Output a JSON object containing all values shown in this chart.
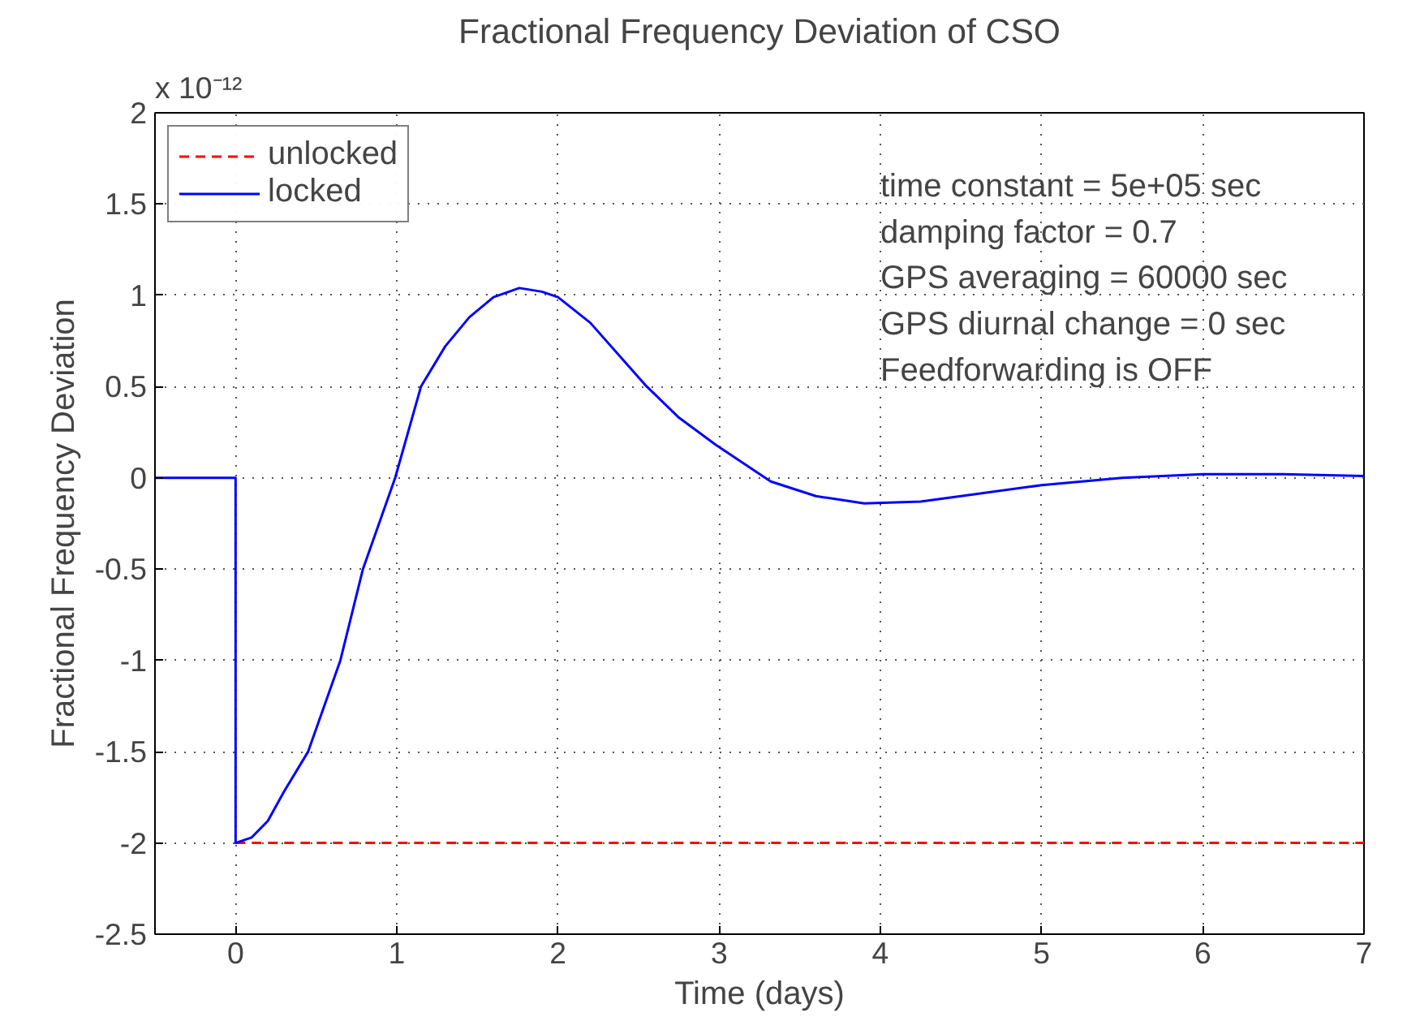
{
  "chart_data": {
    "type": "line",
    "title": "Fractional Frequency Deviation of CSO",
    "xlabel": "Time (days)",
    "ylabel": "Fractional Frequency Deviation",
    "annotations": [
      "x 10⁻¹²",
      "time constant = 5e+05 sec",
      "damping factor = 0.7",
      "GPS averaging = 60000 sec",
      "GPS diurnal change = 0 sec",
      "Feedforwarding is OFF"
    ],
    "xlim": [
      -0.5,
      7
    ],
    "xticks": [
      0,
      1,
      2,
      3,
      4,
      5,
      6,
      7
    ],
    "ylim": [
      -2.5,
      2
    ],
    "yticks": [
      -2.5,
      -2,
      -1.5,
      -1,
      -0.5,
      0,
      0.5,
      1,
      1.5,
      2
    ],
    "grid": true,
    "legend": "top left",
    "series": [
      {
        "name": "unlocked",
        "color": "#ff0000",
        "line_style": "dashed",
        "x": [
          0,
          7
        ],
        "values": [
          -2,
          -2
        ]
      },
      {
        "name": "locked",
        "color": "#0000ff",
        "line_style": "solid",
        "x": [
          -0.5,
          0,
          0,
          0.1,
          0.2,
          0.3,
          0.45,
          0.65,
          0.79,
          0.99,
          1.15,
          1.3,
          1.45,
          1.6,
          1.76,
          1.9,
          2.0,
          2.2,
          2.54,
          2.75,
          2.98,
          3.32,
          3.6,
          3.9,
          4.25,
          4.5,
          5.0,
          5.5,
          6.0,
          6.5,
          7.0
        ],
        "values": [
          0,
          0,
          -2,
          -1.97,
          -1.88,
          -1.72,
          -1.5,
          -1,
          -0.5,
          0,
          0.5,
          0.72,
          0.88,
          0.99,
          1.04,
          1.02,
          0.99,
          0.85,
          0.51,
          0.33,
          0.18,
          -0.02,
          -0.1,
          -0.14,
          -0.13,
          -0.1,
          -0.04,
          0,
          0.02,
          0.02,
          0.01
        ]
      }
    ]
  }
}
